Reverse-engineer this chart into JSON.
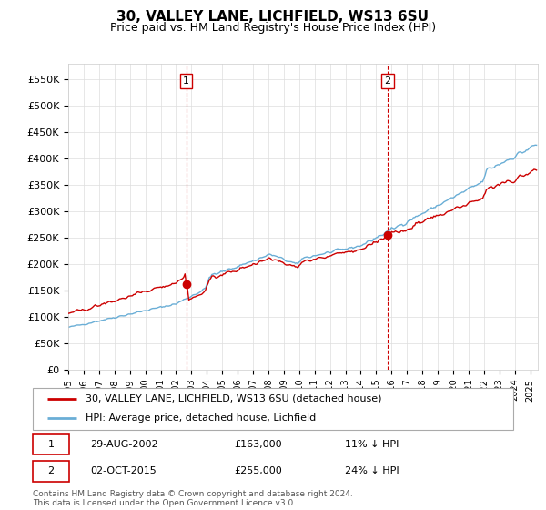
{
  "title": "30, VALLEY LANE, LICHFIELD, WS13 6SU",
  "subtitle": "Price paid vs. HM Land Registry's House Price Index (HPI)",
  "ylabel_ticks": [
    "£0",
    "£50K",
    "£100K",
    "£150K",
    "£200K",
    "£250K",
    "£300K",
    "£350K",
    "£400K",
    "£450K",
    "£500K",
    "£550K"
  ],
  "ytick_values": [
    0,
    50000,
    100000,
    150000,
    200000,
    250000,
    300000,
    350000,
    400000,
    450000,
    500000,
    550000
  ],
  "ylim": [
    0,
    580000
  ],
  "xlim_start": 1995.0,
  "xlim_end": 2025.5,
  "hpi_color": "#6aaed6",
  "price_color": "#cc0000",
  "vline_color": "#cc0000",
  "sale1_year": 2002.66,
  "sale1_price": 163000,
  "sale1_label": "1",
  "sale2_year": 2015.75,
  "sale2_price": 255000,
  "sale2_label": "2",
  "legend_line1": "30, VALLEY LANE, LICHFIELD, WS13 6SU (detached house)",
  "legend_line2": "HPI: Average price, detached house, Lichfield",
  "table_row1": [
    "1",
    "29-AUG-2002",
    "£163,000",
    "11% ↓ HPI"
  ],
  "table_row2": [
    "2",
    "02-OCT-2015",
    "£255,000",
    "24% ↓ HPI"
  ],
  "footnote": "Contains HM Land Registry data © Crown copyright and database right 2024.\nThis data is licensed under the Open Government Licence v3.0.",
  "background_color": "#ffffff",
  "grid_color": "#dddddd"
}
